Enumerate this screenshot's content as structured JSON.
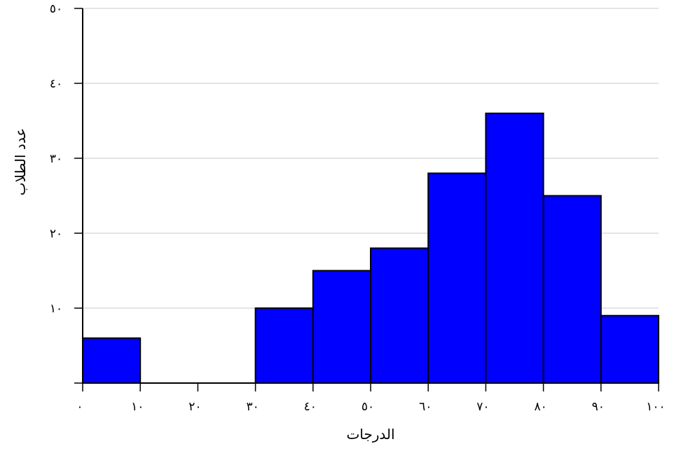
{
  "chart_data": {
    "type": "bar",
    "subtype": "histogram",
    "title": "",
    "xlabel": "الدرجات",
    "ylabel": "عدد الطلاب",
    "xlim": [
      0,
      100
    ],
    "ylim": [
      0,
      50
    ],
    "x_ticks": [
      0,
      10,
      20,
      30,
      40,
      50,
      60,
      70,
      80,
      90,
      100
    ],
    "x_tick_labels": [
      "٠",
      "١٠",
      "٢٠",
      "٣٠",
      "٤٠",
      "٥٠",
      "٦٠",
      "٧٠",
      "٨٠",
      "٩٠",
      "١٠٠"
    ],
    "y_ticks": [
      0,
      10,
      20,
      30,
      40,
      50
    ],
    "y_tick_labels": [
      "",
      "١٠",
      "٢٠",
      "٣٠",
      "٤٠",
      "٥٠"
    ],
    "bins": [
      {
        "start": 0,
        "end": 10,
        "value": 6
      },
      {
        "start": 10,
        "end": 20,
        "value": 0
      },
      {
        "start": 20,
        "end": 30,
        "value": 0
      },
      {
        "start": 30,
        "end": 40,
        "value": 10
      },
      {
        "start": 40,
        "end": 50,
        "value": 15
      },
      {
        "start": 50,
        "end": 60,
        "value": 18
      },
      {
        "start": 60,
        "end": 70,
        "value": 28
      },
      {
        "start": 70,
        "end": 80,
        "value": 36
      },
      {
        "start": 80,
        "end": 90,
        "value": 25
      },
      {
        "start": 90,
        "end": 100,
        "value": 9
      }
    ],
    "bar_color": "#0000ff",
    "edge_color": "#000000",
    "grid": "horizontal",
    "legend": "none"
  }
}
